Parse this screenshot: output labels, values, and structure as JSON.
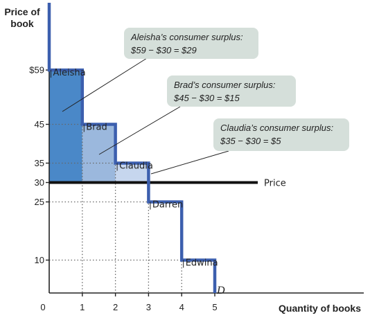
{
  "chart_data": {
    "type": "step",
    "ylabel": [
      "Price of",
      "book"
    ],
    "xlabel": "Quantity of books",
    "x_ticks": [
      "0",
      "1",
      "2",
      "3",
      "4",
      "5"
    ],
    "y_ticks": [
      {
        "value": 59,
        "label": "$59"
      },
      {
        "value": 45,
        "label": "45"
      },
      {
        "value": 35,
        "label": "35"
      },
      {
        "value": 30,
        "label": "30"
      },
      {
        "value": 25,
        "label": "25"
      },
      {
        "value": 10,
        "label": "10"
      }
    ],
    "xlim": [
      0,
      5
    ],
    "price": 30,
    "price_label": "Price",
    "demand_label": "D",
    "consumers": [
      {
        "name": "Aleisha",
        "willingness_to_pay": 59,
        "surplus": 29,
        "color": "#4a88c8"
      },
      {
        "name": "Brad",
        "willingness_to_pay": 45,
        "surplus": 15,
        "color": "#9bb8dd"
      },
      {
        "name": "Claudia",
        "willingness_to_pay": 35,
        "surplus": 5,
        "color": "#c6d6ee"
      },
      {
        "name": "Darren",
        "willingness_to_pay": 25
      },
      {
        "name": "Edwina",
        "willingness_to_pay": 10
      }
    ],
    "callouts": [
      {
        "lines": [
          "Aleisha’s consumer surplus:",
          "$59 − $30 = $29"
        ]
      },
      {
        "lines": [
          "Brad’s consumer surplus:",
          "$45 − $30 = $15"
        ]
      },
      {
        "lines": [
          "Claudia’s consumer surplus:",
          "$35 − $30 = $5"
        ]
      }
    ],
    "colors": {
      "demand": "#3c5fae",
      "price_line": "#111111",
      "callout_bg": "#d5dfda",
      "axis": "#222222",
      "dotted": "#666666"
    }
  }
}
